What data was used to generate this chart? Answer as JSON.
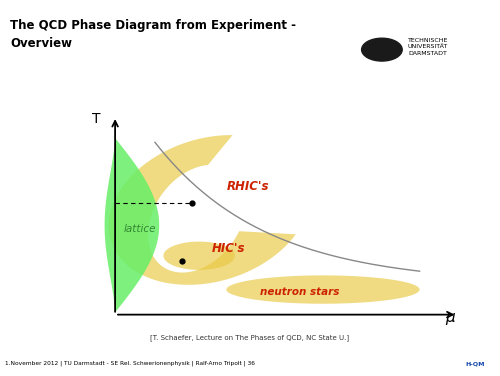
{
  "title": "The QCD Phase Diagram from Experiment -\nOverview",
  "bg_color": "#ffffff",
  "top_bar_color": "#9b0000",
  "footer_text": "1.November 2012 | TU Darmstadt - SE Rel. Schwerionenphysik | Ralf-Arno Tripolt | 36",
  "ref_text": "[T. Schaefer, Lecture on The Phases of QCD, NC State U.]",
  "xlabel": "μ",
  "ylabel": "T",
  "green_color": "#66ee66",
  "yellow_color": "#e8c840",
  "yellow_alpha": 0.65,
  "green_alpha": 0.85,
  "lattice_label": "lattice",
  "rhic_label": "RHIC's",
  "hic_label": "HIC's",
  "neutron_label": "neutron stars",
  "label_color_rhic": "#cc2200",
  "label_color_hic": "#cc2200",
  "label_color_neutron": "#cc2200",
  "label_color_lattice": "#338833",
  "curve_color": "#888888",
  "axis_xlim": [
    0,
    10
  ],
  "axis_ylim": [
    0,
    10
  ]
}
